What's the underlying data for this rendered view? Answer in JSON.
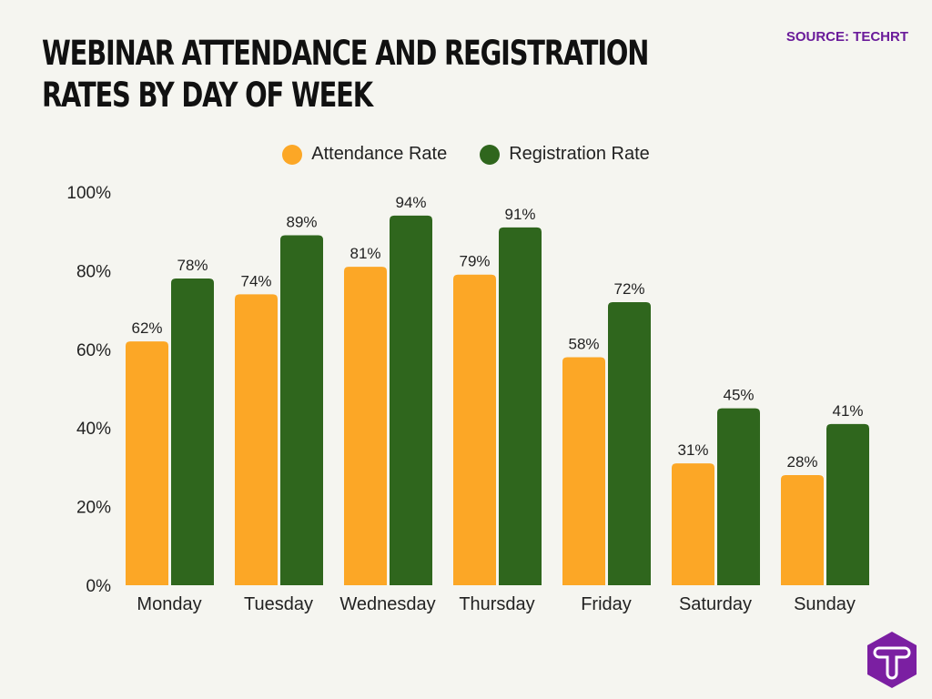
{
  "title": "Webinar Attendance and Registration Rates by Day of Week",
  "source": "SOURCE: TECHRT",
  "colors": {
    "attendance": "#fca726",
    "registration": "#2f661d",
    "logo": "#7b1fa2"
  },
  "logo_icon": "t-hexagon-logo",
  "chart_data": {
    "type": "bar",
    "title": "Webinar Attendance and Registration Rates by Day of Week",
    "categories": [
      "Monday",
      "Tuesday",
      "Wednesday",
      "Thursday",
      "Friday",
      "Saturday",
      "Sunday"
    ],
    "series": [
      {
        "name": "Attendance Rate",
        "values": [
          62,
          74,
          81,
          79,
          58,
          31,
          28
        ]
      },
      {
        "name": "Registration Rate",
        "values": [
          78,
          89,
          94,
          91,
          72,
          45,
          41
        ]
      }
    ],
    "ylim": [
      0,
      100
    ],
    "yticks": [
      "0%",
      "20%",
      "40%",
      "60%",
      "80%",
      "100%"
    ],
    "legend": "top-center",
    "grid": false
  }
}
